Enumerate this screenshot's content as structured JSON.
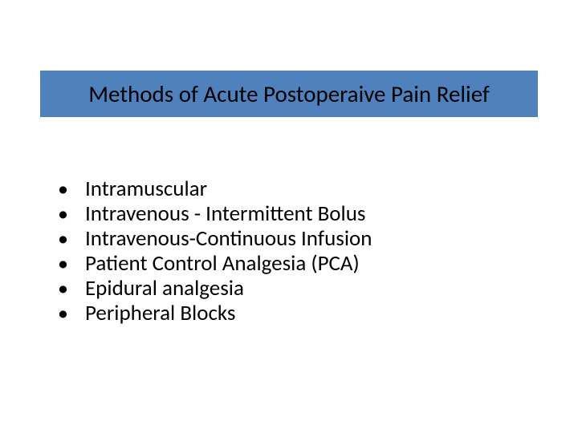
{
  "slide": {
    "title": "Methods of Acute Postoperaive Pain Relief",
    "title_bar_bg": "#4f81bd",
    "title_text_color": "#000000",
    "title_fontsize": 29,
    "bullets": [
      {
        "text": "Intramuscular"
      },
      {
        "text": "Intravenous - Intermittent Bolus"
      },
      {
        "text": "Intravenous-Continuous Infusion"
      },
      {
        "text": "Patient Control Analgesia (PCA)"
      },
      {
        "text": "Epidural analgesia"
      },
      {
        "text": "Peripheral Blocks"
      }
    ],
    "bullet_char": "•",
    "bullet_fontsize": 27,
    "bullet_color": "#000000",
    "background_color": "#ffffff"
  }
}
